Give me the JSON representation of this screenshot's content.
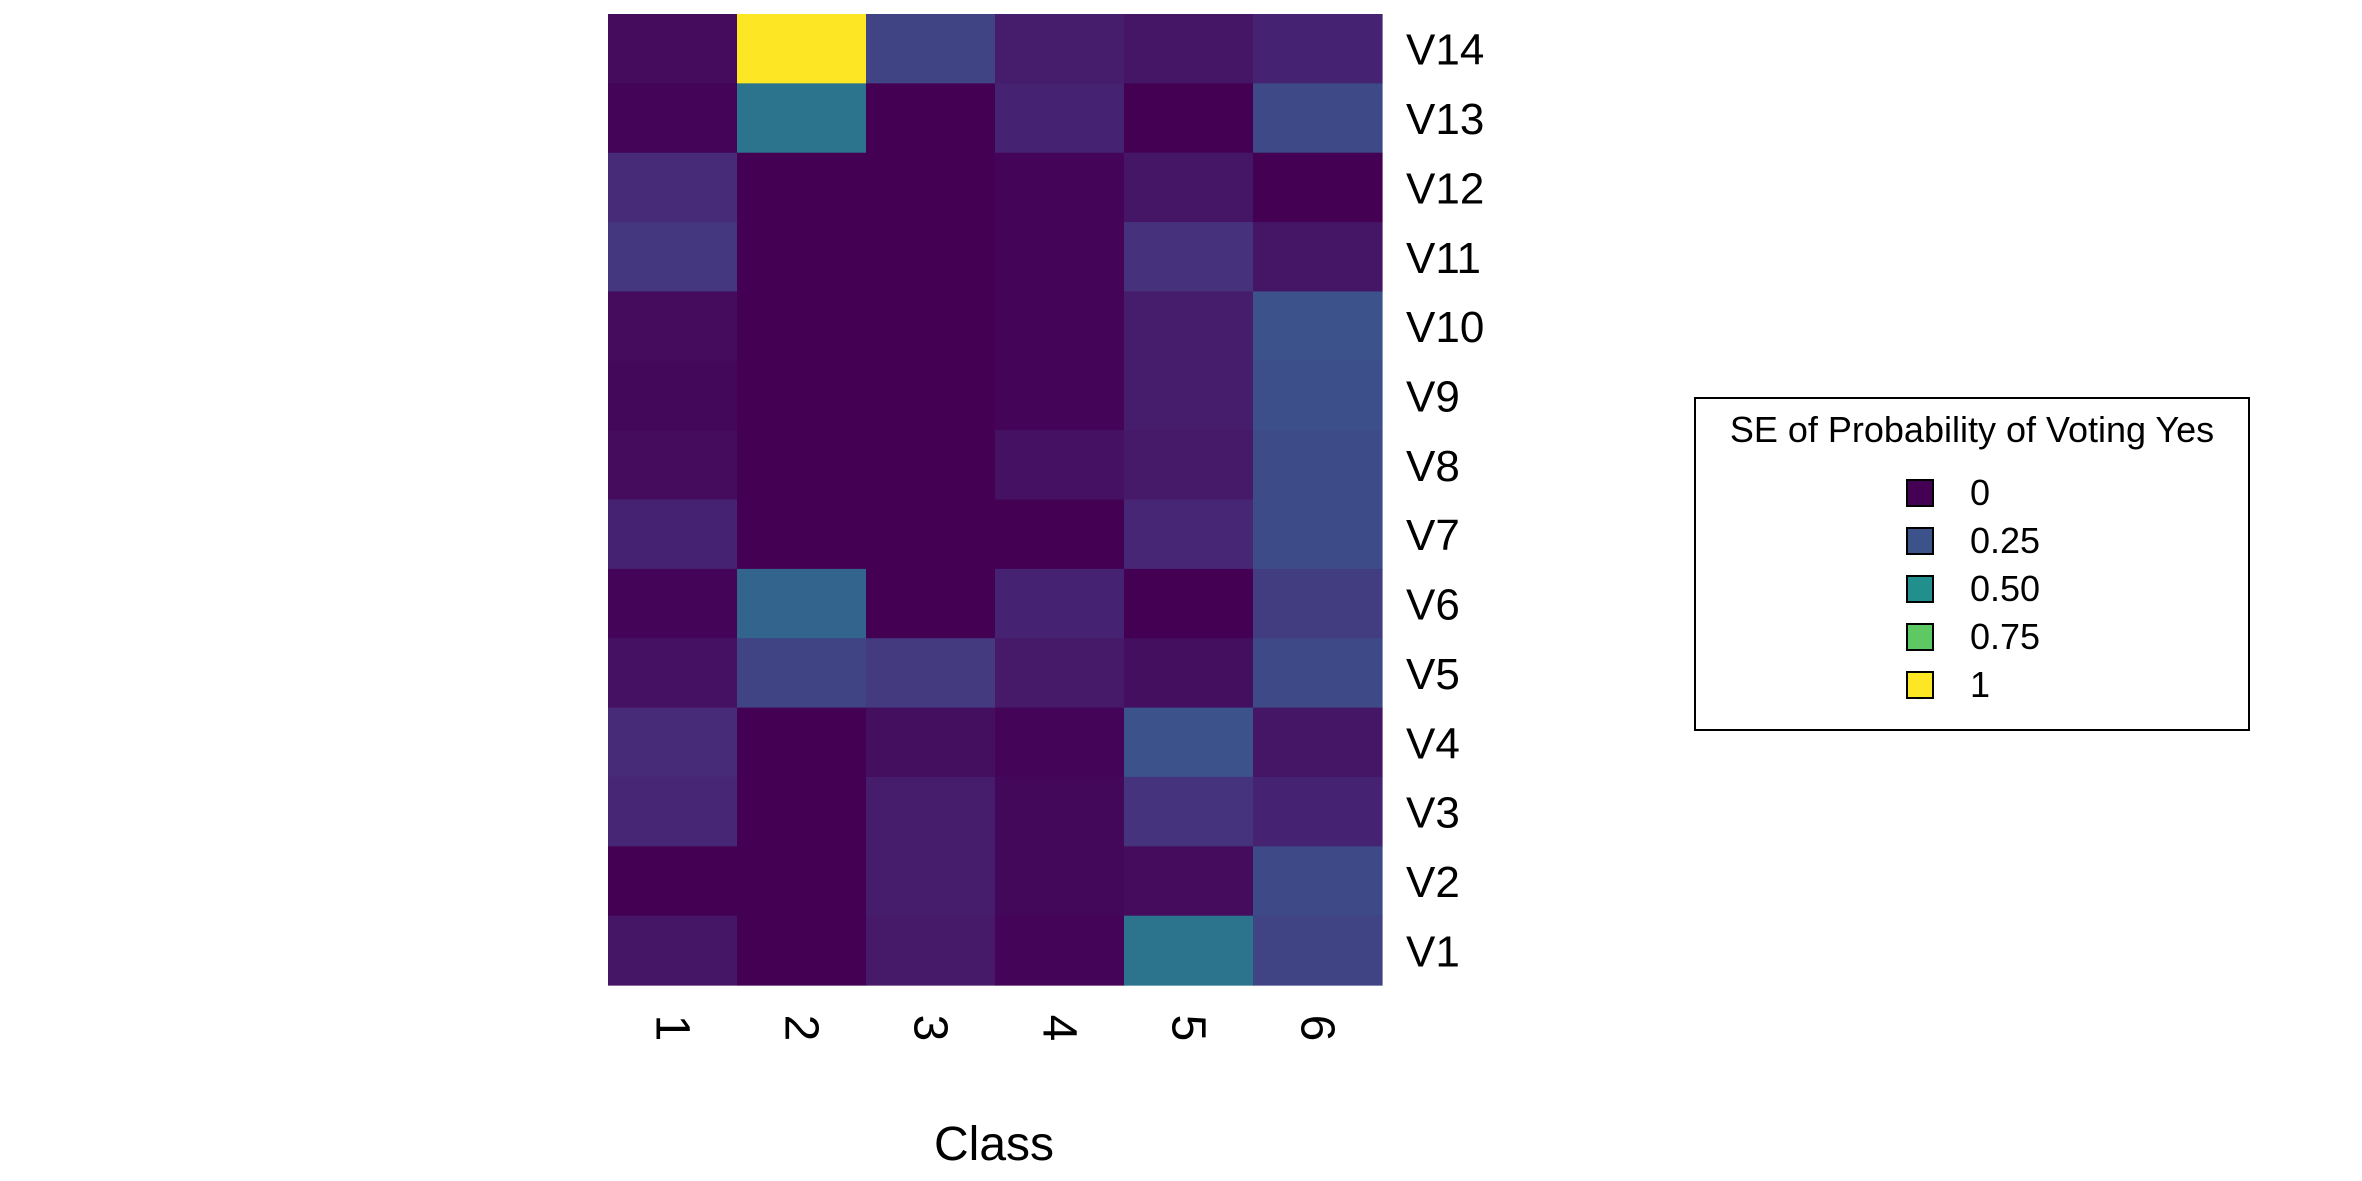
{
  "chart_data": {
    "type": "heatmap",
    "title": "",
    "xlabel": "Class",
    "ylabel": "",
    "x_categories": [
      "1",
      "2",
      "3",
      "4",
      "5",
      "6"
    ],
    "y_categories": [
      "V14",
      "V13",
      "V12",
      "V11",
      "V10",
      "V9",
      "V8",
      "V7",
      "V6",
      "V5",
      "V4",
      "V3",
      "V2",
      "V1"
    ],
    "values": [
      [
        0.03,
        1.0,
        0.2,
        0.08,
        0.06,
        0.1
      ],
      [
        0.01,
        0.38,
        0.0,
        0.1,
        0.0,
        0.22
      ],
      [
        0.12,
        0.0,
        0.0,
        0.01,
        0.06,
        0.0
      ],
      [
        0.16,
        0.0,
        0.0,
        0.01,
        0.14,
        0.06
      ],
      [
        0.03,
        0.0,
        0.0,
        0.01,
        0.08,
        0.25
      ],
      [
        0.02,
        0.0,
        0.0,
        0.01,
        0.08,
        0.24
      ],
      [
        0.03,
        0.0,
        0.0,
        0.05,
        0.07,
        0.23
      ],
      [
        0.1,
        0.0,
        0.0,
        0.0,
        0.11,
        0.23
      ],
      [
        0.01,
        0.32,
        0.0,
        0.1,
        0.0,
        0.18
      ],
      [
        0.05,
        0.2,
        0.17,
        0.07,
        0.04,
        0.22
      ],
      [
        0.12,
        0.0,
        0.04,
        0.01,
        0.25,
        0.06
      ],
      [
        0.11,
        0.0,
        0.08,
        0.02,
        0.15,
        0.1
      ],
      [
        0.0,
        0.0,
        0.08,
        0.02,
        0.03,
        0.22
      ],
      [
        0.06,
        0.0,
        0.07,
        0.01,
        0.38,
        0.2
      ]
    ],
    "color_scale": "viridis",
    "color_range": [
      0,
      1
    ],
    "grid": false,
    "legend_placement": "right",
    "legend": {
      "title": "SE of Probability of Voting Yes",
      "items": [
        {
          "label": "0",
          "color": "#440154"
        },
        {
          "label": "0.25",
          "color": "#3b528b"
        },
        {
          "label": "0.50",
          "color": "#21908c"
        },
        {
          "label": "0.75",
          "color": "#5ec962"
        },
        {
          "label": "1",
          "color": "#fde725"
        }
      ]
    }
  }
}
